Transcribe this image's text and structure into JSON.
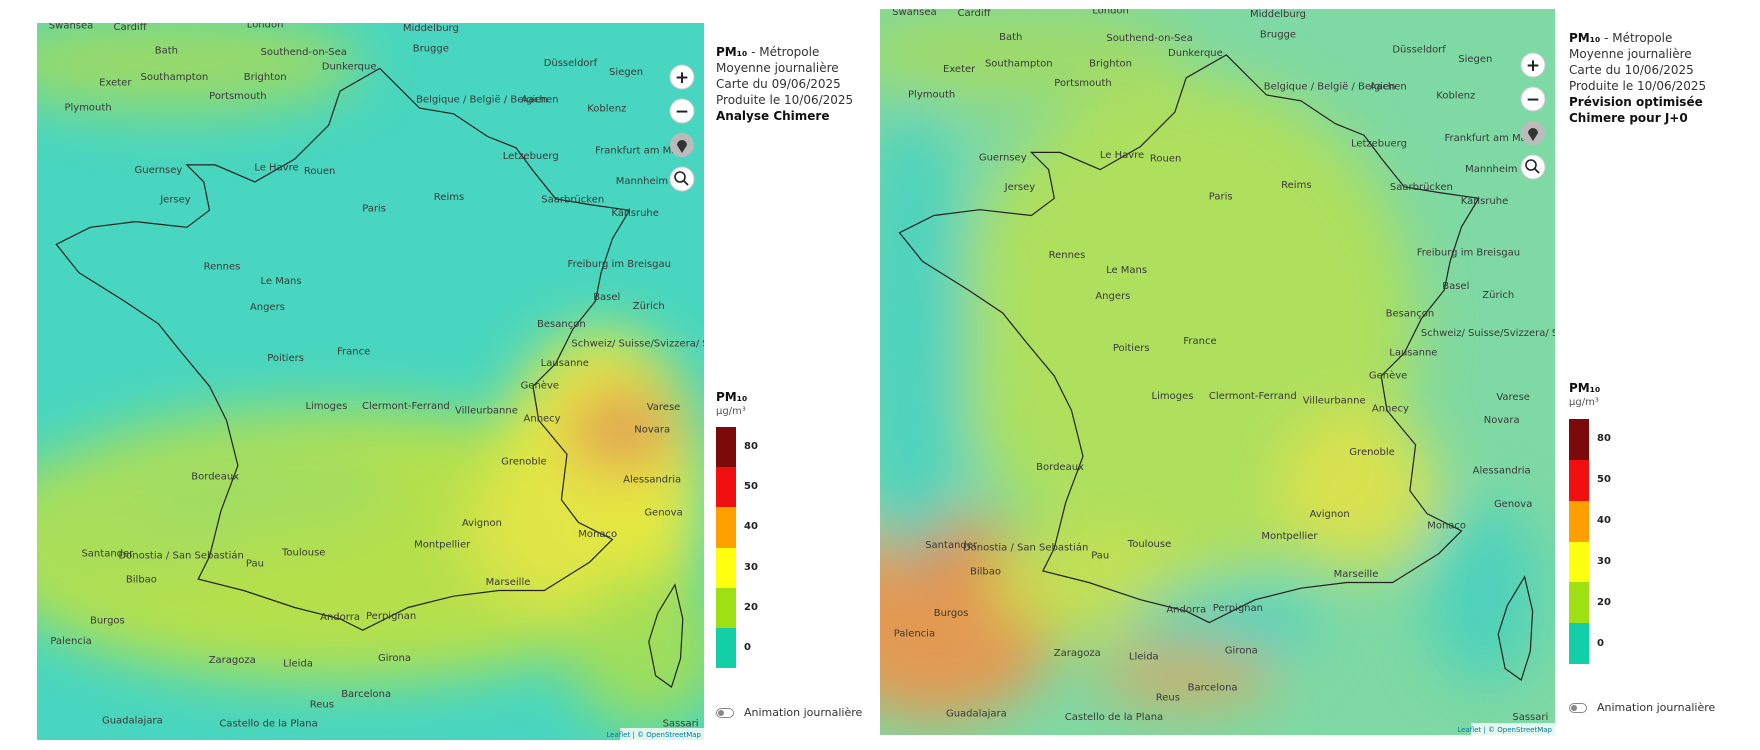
{
  "panels": [
    {
      "title": "PM₁₀",
      "title_suffix": " - Métropole",
      "lines": [
        "Moyenne journalière",
        "Carte du 09/06/2025",
        "Produite le 10/06/2025"
      ],
      "model": "Analyse Chimere"
    },
    {
      "title": "PM₁₀",
      "title_suffix": " - Métropole",
      "lines": [
        "Moyenne journalière",
        "Carte du 10/06/2025",
        "Produite le 10/06/2025"
      ],
      "model": "Prévision optimisée Chimere pour J+0"
    }
  ],
  "controls": {
    "zoom_in": "+",
    "zoom_out": "−"
  },
  "legend": {
    "title": "PM₁₀",
    "unit": "µg/m³",
    "levels": [
      {
        "value": 80,
        "color": "#7d0a0a"
      },
      {
        "value": 50,
        "color": "#f01010"
      },
      {
        "value": 40,
        "color": "#ffa000"
      },
      {
        "value": 30,
        "color": "#ffff10"
      },
      {
        "value": 20,
        "color": "#9ee012"
      },
      {
        "value": 0,
        "color": "#12cfa8"
      }
    ]
  },
  "toggle": "Animation journalière",
  "attribution": "Leaflet | © OpenStreetMap",
  "map_labels": [
    "Swansea",
    "Cardiff",
    "London",
    "Middelburg",
    "Bath",
    "Southend-on-Sea",
    "Brugge",
    "Düsseldorf",
    "Exeter",
    "Southampton",
    "Brighton",
    "Dunkerque",
    "Siegen",
    "Plymouth",
    "Portsmouth",
    "Belgique / België / Belgien",
    "Aachen",
    "Koblenz",
    "Letzebuerg",
    "Frankfurt am Main",
    "Guernsey",
    "Le Havre",
    "Rouen",
    "Mannheim",
    "Jersey",
    "Reims",
    "Saarbrücken",
    "Paris",
    "Karlsruhe",
    "Rennes",
    "Le Mans",
    "Freiburg im Breisgau",
    "Angers",
    "Basel",
    "Zürich",
    "Besançon",
    "France",
    "Poitiers",
    "Schweiz/ Suisse/Svizzera/ Svizra",
    "Lausanne",
    "Limoges",
    "Clermont-Ferrand",
    "Villeurbanne",
    "Genève",
    "Annecy",
    "Varese",
    "Novara",
    "Grenoble",
    "Bordeaux",
    "Alessandria",
    "Genova",
    "Avignon",
    "Toulouse",
    "Montpellier",
    "Monaco",
    "Pau",
    "Santander",
    "Donostia / San Sebastián",
    "Bilbao",
    "Marseille",
    "Perpignan",
    "Andorra",
    "Burgos",
    "Palencia",
    "Zaragoza",
    "Lleida",
    "Girona",
    "Barcelona",
    "Guadalajara",
    "Reus",
    "Castello de la Plana",
    "Sassari"
  ]
}
